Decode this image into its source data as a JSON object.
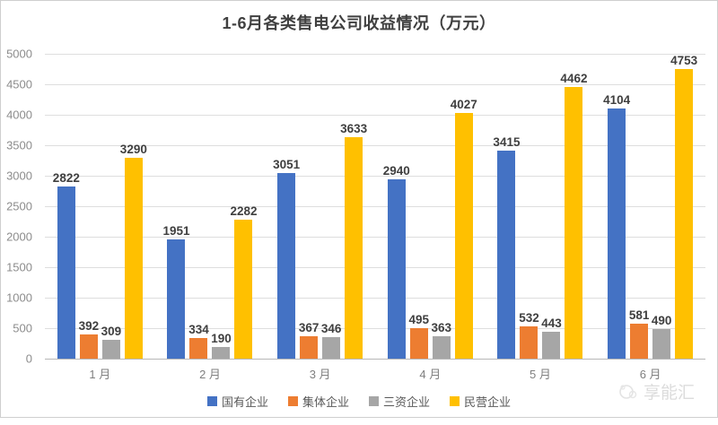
{
  "title": "1-6月各类售电公司收益情况（万元）",
  "watermark": {
    "label": "享能汇"
  },
  "chart_data": {
    "type": "bar",
    "title": "1-6月各类售电公司收益情况（万元）",
    "categories": [
      "1 月",
      "2 月",
      "3 月",
      "4 月",
      "5 月",
      "6 月"
    ],
    "series": [
      {
        "name": "国有企业",
        "color": "#4472C4",
        "values": [
          2822,
          1951,
          3051,
          2940,
          3415,
          4104
        ]
      },
      {
        "name": "集体企业",
        "color": "#ED7D31",
        "values": [
          392,
          334,
          367,
          495,
          532,
          581
        ]
      },
      {
        "name": "三资企业",
        "color": "#A6A6A6",
        "values": [
          309,
          190,
          346,
          363,
          443,
          490
        ]
      },
      {
        "name": "民营企业",
        "color": "#FFC000",
        "values": [
          3290,
          2282,
          3633,
          4027,
          4462,
          4753
        ]
      }
    ],
    "ylim": [
      0,
      5000
    ],
    "yticks": [
      0,
      500,
      1000,
      1500,
      2000,
      2500,
      3000,
      3500,
      4000,
      4500,
      5000
    ],
    "grid": true,
    "data_labels": true,
    "legend_position": "bottom"
  }
}
